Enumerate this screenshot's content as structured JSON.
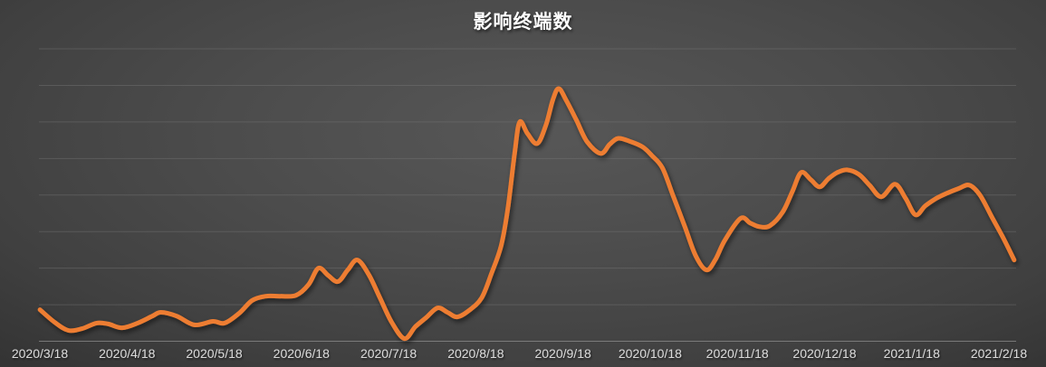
{
  "chart_data": {
    "type": "line",
    "title": "影响终端数",
    "series_name": "影响终端数",
    "x_tick_labels": [
      "2020/3/18",
      "2020/4/18",
      "2020/5/18",
      "2020/6/18",
      "2020/7/18",
      "2020/8/18",
      "2020/9/18",
      "2020/10/18",
      "2020/11/18",
      "2020/12/18",
      "2021/1/18",
      "2021/2/18"
    ],
    "xlabel": "",
    "ylabel": "",
    "y_axis_labels_visible": false,
    "grid": "horizontal",
    "gridline_count": 9,
    "ylim": [
      0,
      100
    ],
    "legend": "none",
    "line_color": "#ED7D31",
    "gridline_color": "#7a7a7a",
    "axis_line_color": "#8d8d8d",
    "label_color": "#D9D9D9",
    "title_color": "#FFFFFF",
    "points": [
      [
        0.001,
        10.8
      ],
      [
        0.016,
        6.5
      ],
      [
        0.03,
        3.7
      ],
      [
        0.044,
        4.3
      ],
      [
        0.059,
        6.2
      ],
      [
        0.071,
        5.9
      ],
      [
        0.085,
        4.6
      ],
      [
        0.101,
        6.2
      ],
      [
        0.116,
        8.6
      ],
      [
        0.125,
        9.9
      ],
      [
        0.141,
        8.6
      ],
      [
        0.159,
        5.6
      ],
      [
        0.178,
        6.8
      ],
      [
        0.19,
        6.2
      ],
      [
        0.205,
        9.6
      ],
      [
        0.218,
        13.9
      ],
      [
        0.232,
        15.4
      ],
      [
        0.247,
        15.4
      ],
      [
        0.263,
        15.7
      ],
      [
        0.276,
        19.4
      ],
      [
        0.286,
        25.0
      ],
      [
        0.296,
        22.5
      ],
      [
        0.306,
        20.4
      ],
      [
        0.316,
        24.4
      ],
      [
        0.326,
        27.8
      ],
      [
        0.338,
        22.5
      ],
      [
        0.349,
        14.8
      ],
      [
        0.361,
        6.5
      ],
      [
        0.374,
        0.9
      ],
      [
        0.385,
        4.9
      ],
      [
        0.396,
        8.0
      ],
      [
        0.408,
        11.4
      ],
      [
        0.418,
        9.9
      ],
      [
        0.428,
        8.3
      ],
      [
        0.44,
        10.5
      ],
      [
        0.453,
        14.8
      ],
      [
        0.463,
        23.1
      ],
      [
        0.473,
        32.7
      ],
      [
        0.48,
        45.7
      ],
      [
        0.487,
        64.8
      ],
      [
        0.492,
        75.0
      ],
      [
        0.5,
        71.0
      ],
      [
        0.51,
        67.6
      ],
      [
        0.519,
        74.1
      ],
      [
        0.526,
        82.7
      ],
      [
        0.532,
        86.4
      ],
      [
        0.54,
        82.1
      ],
      [
        0.55,
        75.6
      ],
      [
        0.561,
        68.2
      ],
      [
        0.575,
        64.2
      ],
      [
        0.584,
        67.3
      ],
      [
        0.593,
        69.4
      ],
      [
        0.606,
        68.2
      ],
      [
        0.618,
        66.4
      ],
      [
        0.627,
        63.6
      ],
      [
        0.638,
        59.3
      ],
      [
        0.649,
        49.7
      ],
      [
        0.661,
        39.2
      ],
      [
        0.672,
        29.3
      ],
      [
        0.683,
        24.4
      ],
      [
        0.692,
        27.8
      ],
      [
        0.702,
        34.6
      ],
      [
        0.718,
        42.0
      ],
      [
        0.728,
        40.4
      ],
      [
        0.737,
        39.2
      ],
      [
        0.748,
        39.5
      ],
      [
        0.761,
        44.1
      ],
      [
        0.771,
        51.2
      ],
      [
        0.78,
        57.7
      ],
      [
        0.79,
        55.2
      ],
      [
        0.799,
        52.8
      ],
      [
        0.808,
        55.6
      ],
      [
        0.817,
        57.7
      ],
      [
        0.827,
        58.6
      ],
      [
        0.839,
        57.1
      ],
      [
        0.85,
        53.4
      ],
      [
        0.862,
        49.4
      ],
      [
        0.876,
        53.7
      ],
      [
        0.887,
        48.8
      ],
      [
        0.897,
        43.2
      ],
      [
        0.907,
        46.3
      ],
      [
        0.918,
        48.8
      ],
      [
        0.929,
        50.6
      ],
      [
        0.941,
        52.2
      ],
      [
        0.952,
        53.4
      ],
      [
        0.963,
        50.0
      ],
      [
        0.975,
        42.6
      ],
      [
        0.987,
        35.2
      ],
      [
        0.998,
        27.8
      ]
    ]
  }
}
